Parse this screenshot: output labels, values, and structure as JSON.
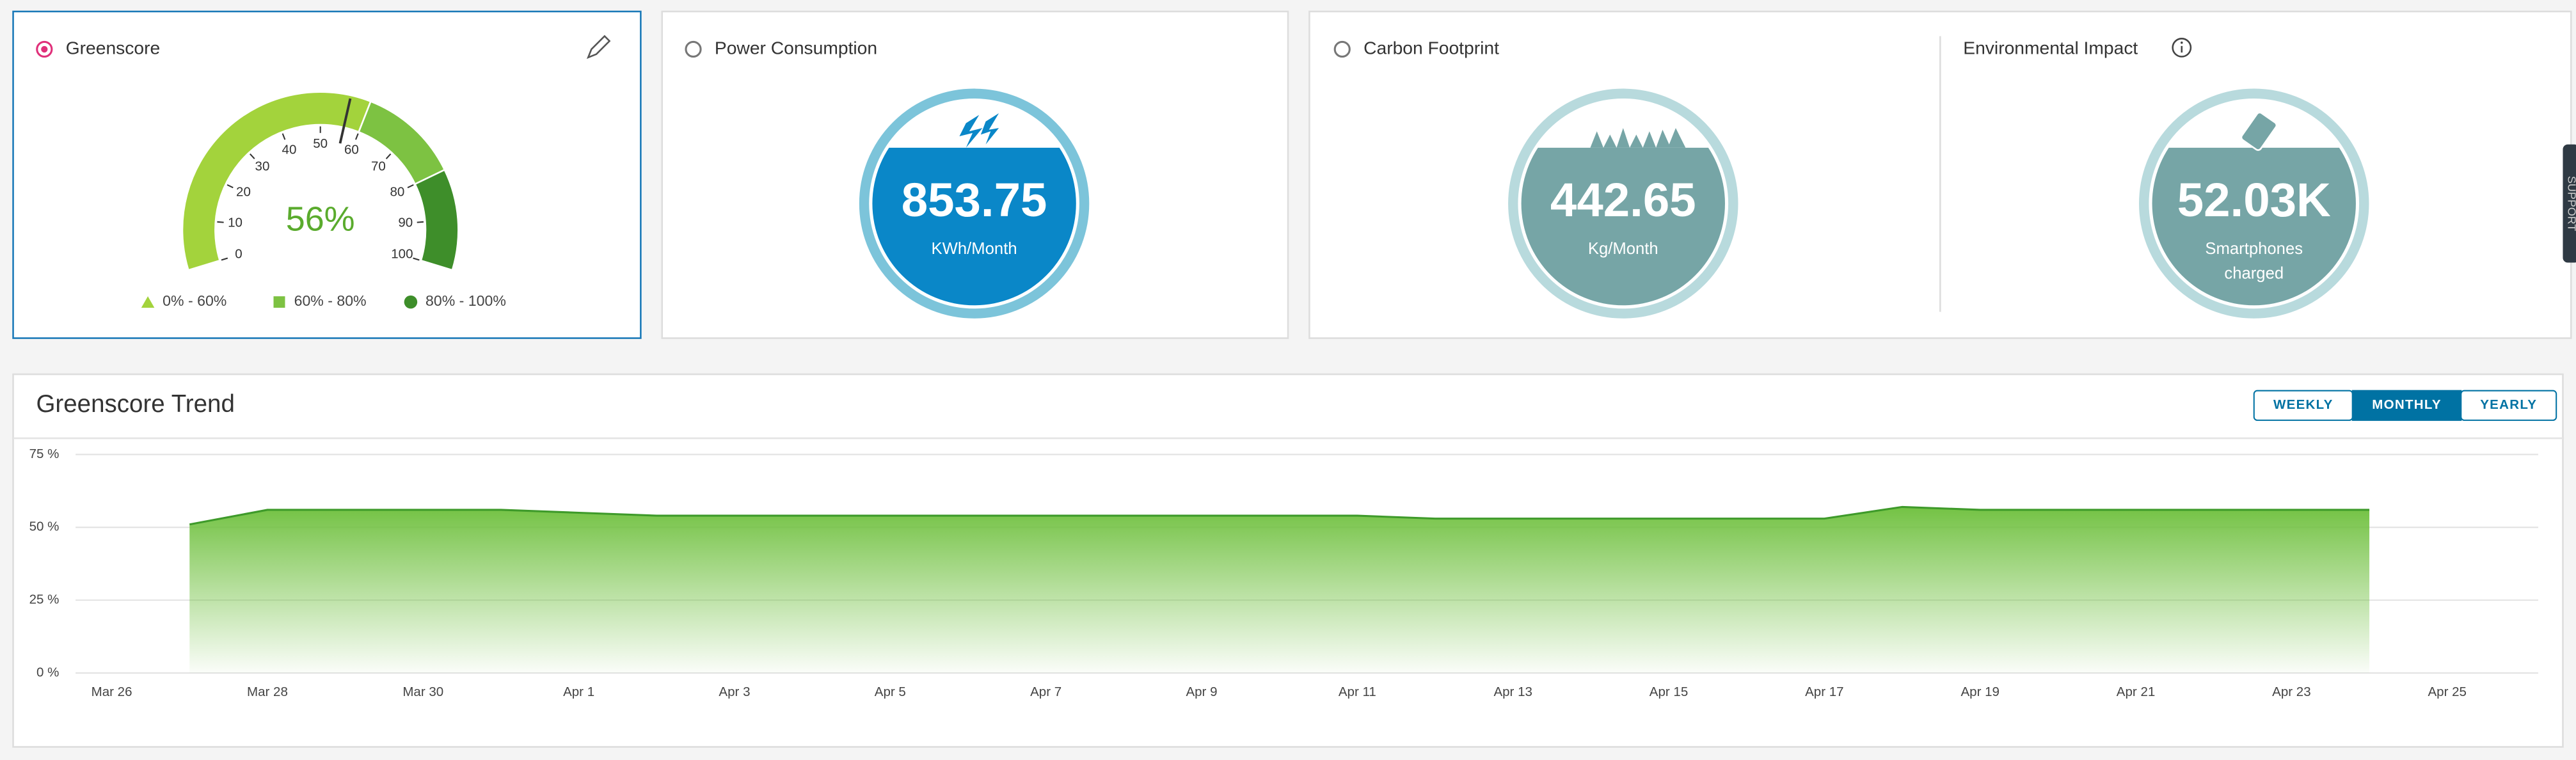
{
  "greenscore": {
    "title": "Greenscore",
    "value": 56,
    "value_label": "56%",
    "gauge_ticks": [
      0,
      10,
      20,
      30,
      40,
      50,
      60,
      70,
      80,
      90,
      100
    ],
    "legend": [
      "0% - 60%",
      "60% - 80%",
      "80% - 100%"
    ]
  },
  "power": {
    "title": "Power Consumption",
    "value": "853.75",
    "unit": "KWh/Month"
  },
  "carbon": {
    "title": "Carbon Footprint",
    "value": "442.65",
    "unit": "Kg/Month"
  },
  "impact": {
    "title": "Environmental Impact",
    "value": "52.03K",
    "unit": [
      "Smartphones",
      "charged"
    ]
  },
  "support": "SUPPORT",
  "chart_data": {
    "type": "area",
    "title": "Greenscore Trend",
    "buttons": [
      "WEEKLY",
      "MONTHLY",
      "YEARLY"
    ],
    "active_button": 1,
    "color": "#3e9a2a",
    "x": [
      "Mar 27",
      "Mar 28",
      "Mar 29",
      "Mar 30",
      "Mar 31",
      "Apr 1",
      "Apr 2",
      "Apr 3",
      "Apr 4",
      "Apr 5",
      "Apr 6",
      "Apr 7",
      "Apr 8",
      "Apr 9",
      "Apr 10",
      "Apr 11",
      "Apr 12",
      "Apr 13",
      "Apr 14",
      "Apr 15",
      "Apr 16",
      "Apr 17",
      "Apr 18",
      "Apr 19",
      "Apr 20",
      "Apr 21",
      "Apr 22",
      "Apr 23",
      "Apr 24"
    ],
    "values": [
      51,
      56,
      56,
      56,
      56,
      55,
      54,
      54,
      54,
      54,
      54,
      54,
      54,
      54,
      54,
      54,
      53,
      53,
      53,
      53,
      53,
      53,
      57,
      56,
      56,
      56,
      56,
      56,
      56
    ],
    "xlim": [
      "Mar 26",
      "Apr 26"
    ],
    "xticks": [
      "Mar 26",
      "Mar 28",
      "Mar 30",
      "Apr 1",
      "Apr 3",
      "Apr 5",
      "Apr 7",
      "Apr 9",
      "Apr 11",
      "Apr 13",
      "Apr 15",
      "Apr 17",
      "Apr 19",
      "Apr 21",
      "Apr 23",
      "Apr 25"
    ],
    "ylim": [
      0,
      80
    ],
    "yticks": [
      {
        "value": 0,
        "label": "0 %"
      },
      {
        "value": 25,
        "label": "25 %"
      },
      {
        "value": 50,
        "label": "50 %"
      },
      {
        "value": 75,
        "label": "75 %"
      }
    ],
    "grid": true
  }
}
